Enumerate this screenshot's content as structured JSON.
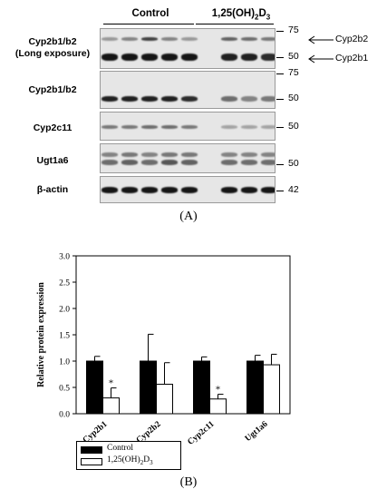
{
  "panel_a": {
    "groups": {
      "control": "Control",
      "treat_base": "1,25(OH)",
      "treat_sub": "2",
      "treat_d": "D",
      "treat_sub2": "3"
    },
    "blots": [
      {
        "label_l1": "Cyp2b1/b2",
        "label_l2": "(Long exposure)",
        "markers": [
          "75",
          "50"
        ]
      },
      {
        "label_l1": "Cyp2b1/b2",
        "label_l2": "",
        "markers": [
          "75",
          "50"
        ]
      },
      {
        "label_l1": "Cyp2c11",
        "label_l2": "",
        "markers": [
          "50"
        ]
      },
      {
        "label_l1": "Ugt1a6",
        "label_l2": "",
        "markers": [
          "50"
        ]
      },
      {
        "label_l1": "β-actin",
        "label_l2": "",
        "markers": [
          "42"
        ]
      }
    ],
    "arrows": {
      "upper": "Cyp2b2",
      "lower": "Cyp2b1"
    },
    "caption": "(A)"
  },
  "panel_b": {
    "caption": "(B)",
    "chart_data": {
      "type": "bar",
      "ylabel": "Relative protein expression",
      "xlabel": "",
      "ylim": [
        0,
        3.0
      ],
      "yticks": [
        "0.0",
        "0.5",
        "1.0",
        "1.5",
        "2.0",
        "2.5",
        "3.0"
      ],
      "categories": [
        "Cyp2b1",
        "Cyp2b2",
        "Cyp2c11",
        "Ugt1a6"
      ],
      "series": [
        {
          "name": "Control",
          "color": "#000000",
          "values": [
            1.0,
            1.0,
            1.0,
            1.0
          ],
          "errors": [
            0.09,
            0.51,
            0.08,
            0.11
          ]
        },
        {
          "name": "1,25(OH)2D3",
          "color": "#ffffff",
          "values": [
            0.3,
            0.56,
            0.28,
            0.93
          ],
          "errors": [
            0.19,
            0.41,
            0.09,
            0.2
          ]
        }
      ],
      "significance": [
        "*",
        "",
        "*",
        ""
      ],
      "legend_position": "below"
    },
    "legend": {
      "control": "Control",
      "treat_base": "1,25(OH)",
      "treat_sub": "2",
      "treat_d": "D",
      "treat_sub2": "3"
    }
  }
}
